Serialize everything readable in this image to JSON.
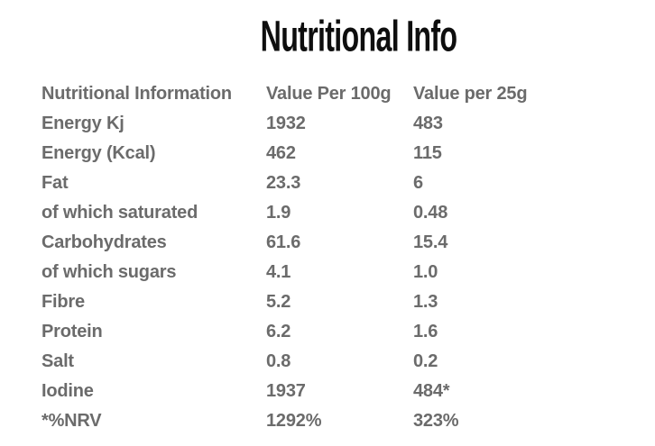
{
  "title": "Nutritional Info",
  "table": {
    "headers": [
      "Nutritional Information",
      "Value Per 100g",
      "Value per 25g"
    ],
    "rows": [
      {
        "label": "Energy Kj",
        "per100g": "1932",
        "per25g": "483"
      },
      {
        "label": "Energy (Kcal)",
        "per100g": "462",
        "per25g": "115"
      },
      {
        "label": "Fat",
        "per100g": "23.3",
        "per25g": "6"
      },
      {
        "label": "of which saturated",
        "per100g": "1.9",
        "per25g": "0.48"
      },
      {
        "label": "Carbohydrates",
        "per100g": "61.6",
        "per25g": "15.4"
      },
      {
        "label": "of which sugars",
        "per100g": "4.1",
        "per25g": "1.0"
      },
      {
        "label": "Fibre",
        "per100g": "5.2",
        "per25g": "1.3"
      },
      {
        "label": "Protein",
        "per100g": "6.2",
        "per25g": "1.6"
      },
      {
        "label": "Salt",
        "per100g": "0.8",
        "per25g": "0.2"
      },
      {
        "label": "Iodine",
        "per100g": "1937",
        "per25g": "484*"
      },
      {
        "label": "*%NRV",
        "per100g": "1292%",
        "per25g": "323%"
      }
    ]
  },
  "colors": {
    "background": "#ffffff",
    "title_text": "#0e0e0e",
    "table_text": "#6b6b6b"
  }
}
